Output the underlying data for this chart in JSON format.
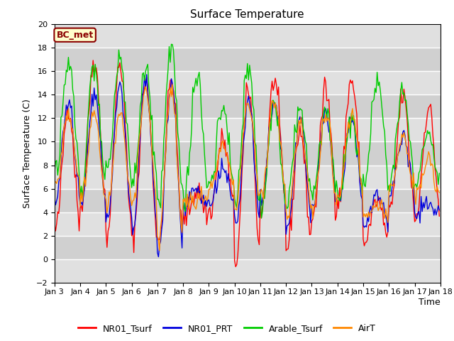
{
  "title": "Surface Temperature",
  "ylabel": "Surface Temperature (C)",
  "xlabel": "Time",
  "ylim": [
    -2,
    20
  ],
  "yticks": [
    -2,
    0,
    2,
    4,
    6,
    8,
    10,
    12,
    14,
    16,
    18,
    20
  ],
  "xtick_labels": [
    "Jan 3",
    "Jan 4",
    "Jan 5",
    "Jan 6",
    "Jan 7",
    "Jan 8",
    "Jan 9",
    "Jan 10",
    "Jan 11",
    "Jan 12",
    "Jan 13",
    "Jan 14",
    "Jan 15",
    "Jan 16",
    "Jan 17",
    "Jan 18"
  ],
  "annotation_text": "BC_met",
  "annotation_bg": "#ffffcc",
  "annotation_border": "#8b0000",
  "plot_bg": "#d8d8d8",
  "fig_bg": "#ffffff",
  "line_colors": {
    "NR01_Tsurf": "#ff0000",
    "NR01_PRT": "#0000dd",
    "Arable_Tsurf": "#00cc00",
    "AirT": "#ff8800"
  },
  "line_width": 1.0,
  "legend_entries": [
    "NR01_Tsurf",
    "NR01_PRT",
    "Arable_Tsurf",
    "AirT"
  ]
}
